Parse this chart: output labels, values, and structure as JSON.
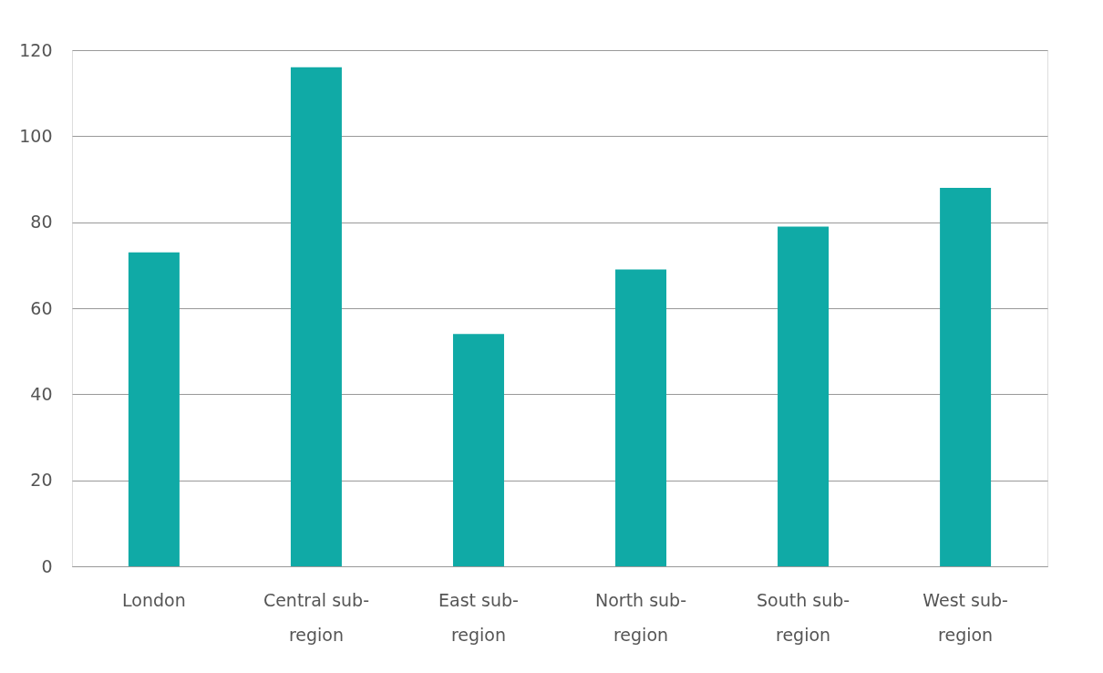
{
  "chart_data": {
    "type": "bar",
    "categories": [
      "London",
      "Central sub-region",
      "East sub-region",
      "North sub-region",
      "South sub-region",
      "West sub-region"
    ],
    "values": [
      73,
      116,
      54,
      69,
      79,
      88
    ],
    "color": "#10aaa6",
    "ylim": [
      0,
      120
    ],
    "yticks": [
      0,
      20,
      40,
      60,
      80,
      100,
      120
    ],
    "grid": "y"
  }
}
